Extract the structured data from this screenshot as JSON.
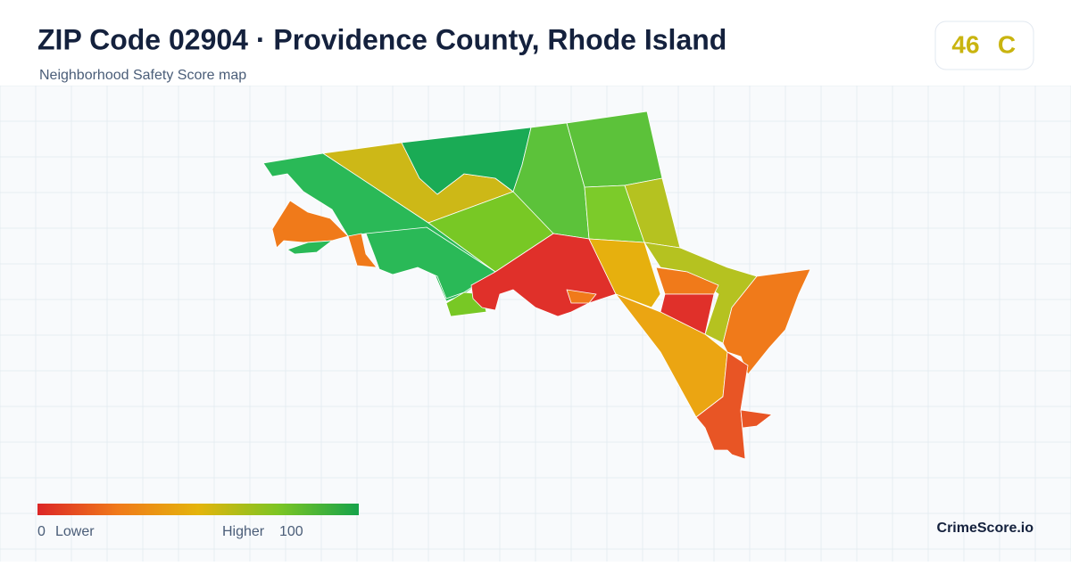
{
  "header": {
    "title": "ZIP Code 02904 · Providence County, Rhode Island",
    "subtitle": "Neighborhood Safety Score map"
  },
  "score": {
    "value": "46",
    "grade": "C"
  },
  "legend": {
    "min": "0",
    "min_label": "Lower",
    "max_label": "Higher",
    "max": "100"
  },
  "brand": "CrimeScore.io"
}
